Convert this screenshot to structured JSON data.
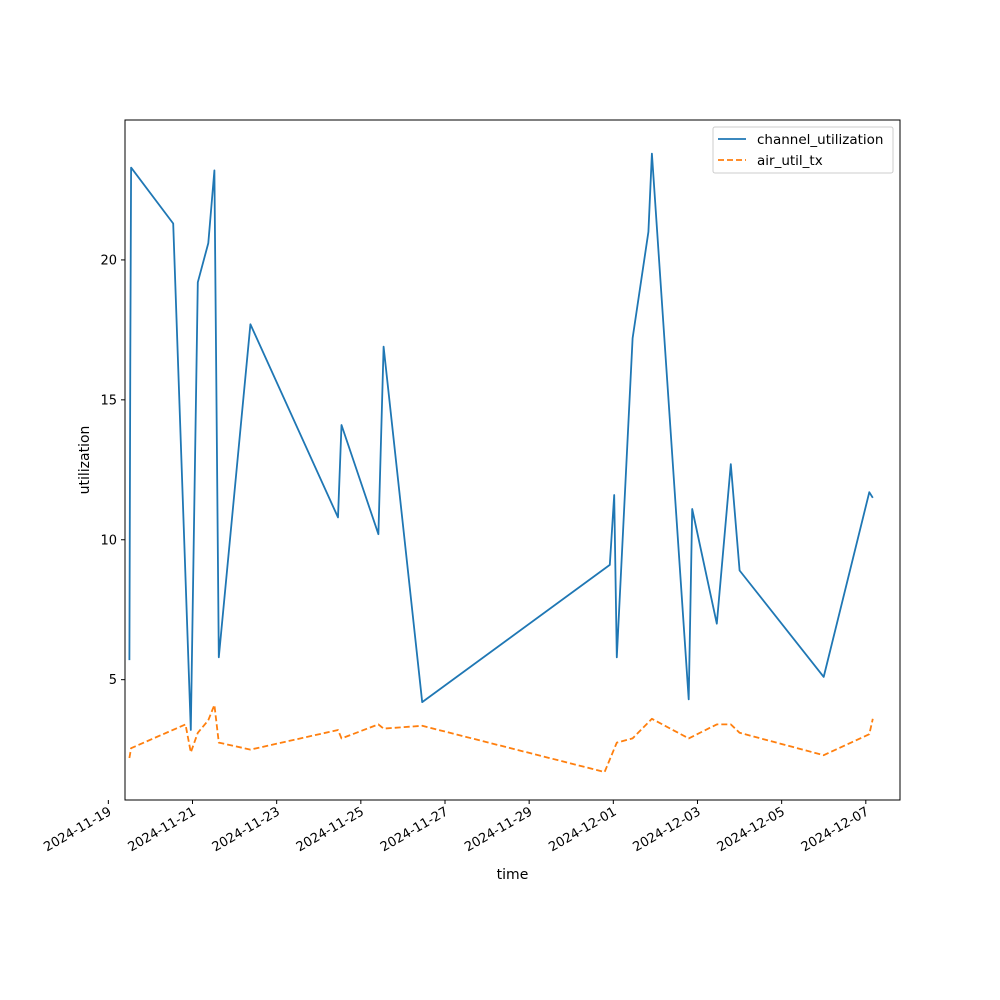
{
  "chart_data": {
    "type": "line",
    "title": "",
    "xlabel": "time",
    "ylabel": "utilization",
    "x_axis_kind": "datetime",
    "xlim": [
      "2024-11-19T09:30",
      "2024-12-07T19:30"
    ],
    "ylim": [
      0.7,
      25.0
    ],
    "x_ticks": [
      "2024-11-19",
      "2024-11-21",
      "2024-11-23",
      "2024-11-25",
      "2024-11-27",
      "2024-11-29",
      "2024-12-01",
      "2024-12-03",
      "2024-12-05",
      "2024-12-07"
    ],
    "y_ticks": [
      5,
      10,
      15,
      20
    ],
    "grid": false,
    "legend_position": "top-right",
    "series": [
      {
        "name": "channel_utilization",
        "color": "#1f77b4",
        "dash": "solid",
        "points": [
          [
            "2024-11-19T12:00",
            5.7
          ],
          [
            "2024-11-19T12:30",
            16.5
          ],
          [
            "2024-11-19T13:00",
            23.3
          ],
          [
            "2024-11-20T13:00",
            21.3
          ],
          [
            "2024-11-20T23:00",
            3.2
          ],
          [
            "2024-11-21T03:00",
            19.2
          ],
          [
            "2024-11-21T09:00",
            20.6
          ],
          [
            "2024-11-21T12:30",
            23.2
          ],
          [
            "2024-11-21T15:00",
            5.8
          ],
          [
            "2024-11-22T09:00",
            17.7
          ],
          [
            "2024-11-24T11:00",
            10.8
          ],
          [
            "2024-11-24T13:00",
            14.1
          ],
          [
            "2024-11-25T10:00",
            10.2
          ],
          [
            "2024-11-25T13:00",
            16.9
          ],
          [
            "2024-11-26T11:00",
            4.2
          ],
          [
            "2024-11-30T22:00",
            9.1
          ],
          [
            "2024-12-01T00:30",
            11.6
          ],
          [
            "2024-12-01T02:00",
            5.8
          ],
          [
            "2024-12-01T11:00",
            17.2
          ],
          [
            "2024-12-01T20:00",
            21.0
          ],
          [
            "2024-12-01T22:00",
            23.8
          ],
          [
            "2024-12-02T19:00",
            4.3
          ],
          [
            "2024-12-02T21:00",
            11.1
          ],
          [
            "2024-12-03T11:00",
            7.0
          ],
          [
            "2024-12-03T19:00",
            12.7
          ],
          [
            "2024-12-04T00:00",
            8.9
          ],
          [
            "2024-12-06T00:00",
            5.1
          ],
          [
            "2024-12-07T02:00",
            11.7
          ],
          [
            "2024-12-07T04:00",
            11.5
          ]
        ]
      },
      {
        "name": "air_util_tx",
        "color": "#ff7f0e",
        "dash": "dashed",
        "points": [
          [
            "2024-11-19T12:00",
            2.2
          ],
          [
            "2024-11-19T13:00",
            2.55
          ],
          [
            "2024-11-20T20:00",
            3.4
          ],
          [
            "2024-11-20T23:00",
            2.4
          ],
          [
            "2024-11-21T03:00",
            3.1
          ],
          [
            "2024-11-21T09:00",
            3.55
          ],
          [
            "2024-11-21T12:30",
            4.1
          ],
          [
            "2024-11-21T15:00",
            2.75
          ],
          [
            "2024-11-22T09:00",
            2.5
          ],
          [
            "2024-11-24T11:00",
            3.2
          ],
          [
            "2024-11-24T13:00",
            2.9
          ],
          [
            "2024-11-25T10:00",
            3.4
          ],
          [
            "2024-11-25T13:00",
            3.25
          ],
          [
            "2024-11-26T11:00",
            3.35
          ],
          [
            "2024-11-30T19:00",
            1.7
          ],
          [
            "2024-12-01T02:00",
            2.75
          ],
          [
            "2024-12-01T11:00",
            2.9
          ],
          [
            "2024-12-01T22:00",
            3.6
          ],
          [
            "2024-12-02T19:00",
            2.9
          ],
          [
            "2024-12-03T11:00",
            3.4
          ],
          [
            "2024-12-03T19:00",
            3.4
          ],
          [
            "2024-12-04T00:00",
            3.1
          ],
          [
            "2024-12-06T00:00",
            2.3
          ],
          [
            "2024-12-07T02:00",
            3.05
          ],
          [
            "2024-12-07T04:00",
            3.6
          ]
        ]
      }
    ]
  }
}
